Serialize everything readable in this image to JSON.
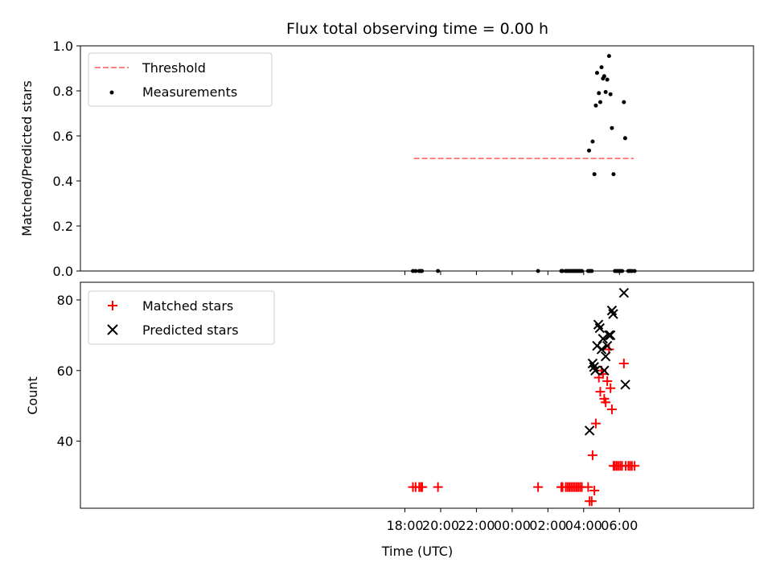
{
  "chart_data": [
    {
      "type": "scatter",
      "title": "Flux total observing time = 0.00 h",
      "xlabel": "",
      "ylabel": "Matched/Predicted stars",
      "x_unit": "hours since 18:00 UTC (day 1)",
      "xlim": [
        -0.15,
        37.5
      ],
      "ylim": [
        0.0,
        1.0
      ],
      "yticks": [
        0.0,
        0.2,
        0.4,
        0.6,
        0.8,
        1.0
      ],
      "ytick_labels": [
        "0.0",
        "0.2",
        "0.4",
        "0.6",
        "0.8",
        "1.0"
      ],
      "legend": {
        "position": "upper left",
        "entries": [
          "Threshold",
          "Measurements"
        ]
      },
      "threshold": {
        "name": "Threshold",
        "value": 0.5,
        "x_range": [
          18.5,
          30.8
        ],
        "color": "#ff8080",
        "style": "dashed"
      },
      "series": [
        {
          "name": "Measurements",
          "color": "#000000",
          "marker": "dot",
          "points": [
            [
              18.45,
              0
            ],
            [
              18.6,
              0
            ],
            [
              18.8,
              0
            ],
            [
              18.9,
              0
            ],
            [
              18.95,
              0
            ],
            [
              19.85,
              0
            ],
            [
              25.45,
              0
            ],
            [
              26.75,
              0
            ],
            [
              26.82,
              0
            ],
            [
              27.0,
              0
            ],
            [
              27.1,
              0
            ],
            [
              27.2,
              0
            ],
            [
              27.3,
              0
            ],
            [
              27.4,
              0
            ],
            [
              27.5,
              0
            ],
            [
              27.6,
              0
            ],
            [
              27.7,
              0
            ],
            [
              27.8,
              0
            ],
            [
              27.9,
              0
            ],
            [
              28.25,
              0
            ],
            [
              28.35,
              0
            ],
            [
              28.45,
              0
            ],
            [
              28.3,
              0.535
            ],
            [
              28.5,
              0.575
            ],
            [
              28.6,
              0.43
            ],
            [
              28.68,
              0.735
            ],
            [
              28.75,
              0.88
            ],
            [
              28.85,
              0.79
            ],
            [
              28.93,
              0.75
            ],
            [
              29.0,
              0.905
            ],
            [
              29.08,
              0.855
            ],
            [
              29.15,
              0.865
            ],
            [
              29.23,
              0.795
            ],
            [
              29.32,
              0.85
            ],
            [
              29.42,
              0.955
            ],
            [
              29.5,
              0.785
            ],
            [
              29.58,
              0.635
            ],
            [
              29.67,
              0.43
            ],
            [
              30.25,
              0.75
            ],
            [
              30.32,
              0.59
            ],
            [
              29.75,
              0
            ],
            [
              29.85,
              0
            ],
            [
              29.95,
              0
            ],
            [
              30.05,
              0
            ],
            [
              30.15,
              0
            ],
            [
              30.5,
              0
            ],
            [
              30.6,
              0
            ],
            [
              30.7,
              0
            ],
            [
              30.85,
              0
            ]
          ]
        }
      ]
    },
    {
      "type": "scatter",
      "title": "",
      "xlabel": "Time (UTC)",
      "ylabel": "Count",
      "x_unit": "hours since 18:00 UTC (day 1)",
      "xlim": [
        -0.15,
        37.5
      ],
      "ylim": [
        21,
        85
      ],
      "xticks": [
        18,
        20,
        22,
        24,
        26,
        28,
        30
      ],
      "xtick_labels": [
        "18:00",
        "20:00",
        "22:00",
        "00:00",
        "02:00",
        "04:00",
        "06:00"
      ],
      "yticks": [
        40,
        60,
        80
      ],
      "ytick_labels": [
        "40",
        "60",
        "80"
      ],
      "legend": {
        "position": "upper left",
        "entries": [
          "Matched stars",
          "Predicted stars"
        ]
      },
      "series": [
        {
          "name": "Matched stars",
          "color": "#ff0000",
          "marker": "plus",
          "points": [
            [
              18.45,
              27
            ],
            [
              18.6,
              27
            ],
            [
              18.8,
              27
            ],
            [
              18.9,
              27
            ],
            [
              18.97,
              27
            ],
            [
              19.85,
              27
            ],
            [
              25.45,
              27
            ],
            [
              26.75,
              27
            ],
            [
              26.82,
              27
            ],
            [
              27.0,
              27
            ],
            [
              27.1,
              27
            ],
            [
              27.2,
              27
            ],
            [
              27.3,
              27
            ],
            [
              27.4,
              27
            ],
            [
              27.5,
              27
            ],
            [
              27.6,
              27
            ],
            [
              27.7,
              27
            ],
            [
              27.8,
              27
            ],
            [
              27.9,
              27
            ],
            [
              28.25,
              27
            ],
            [
              28.33,
              23
            ],
            [
              28.45,
              23
            ],
            [
              28.5,
              36
            ],
            [
              28.6,
              26
            ],
            [
              28.68,
              45
            ],
            [
              28.85,
              58
            ],
            [
              28.93,
              54
            ],
            [
              29.0,
              60
            ],
            [
              29.08,
              59
            ],
            [
              29.15,
              52
            ],
            [
              29.23,
              51
            ],
            [
              29.32,
              57
            ],
            [
              29.42,
              66
            ],
            [
              29.5,
              55
            ],
            [
              29.58,
              49
            ],
            [
              30.25,
              62
            ],
            [
              29.67,
              33
            ],
            [
              29.75,
              33
            ],
            [
              29.85,
              33
            ],
            [
              29.95,
              33
            ],
            [
              30.05,
              33
            ],
            [
              30.15,
              33
            ],
            [
              30.35,
              33
            ],
            [
              30.5,
              33
            ],
            [
              30.6,
              33
            ],
            [
              30.7,
              33
            ],
            [
              30.85,
              33
            ]
          ]
        },
        {
          "name": "Predicted stars",
          "color": "#000000",
          "marker": "x",
          "points": [
            [
              28.33,
              43
            ],
            [
              28.5,
              62
            ],
            [
              28.58,
              61
            ],
            [
              28.65,
              60
            ],
            [
              28.75,
              67
            ],
            [
              28.82,
              73
            ],
            [
              28.9,
              72
            ],
            [
              29.0,
              66
            ],
            [
              29.08,
              69
            ],
            [
              29.15,
              60
            ],
            [
              29.23,
              64
            ],
            [
              29.32,
              67
            ],
            [
              29.42,
              70
            ],
            [
              29.5,
              70
            ],
            [
              29.58,
              77
            ],
            [
              29.65,
              76
            ],
            [
              30.25,
              82
            ],
            [
              30.33,
              56
            ]
          ]
        }
      ]
    }
  ]
}
